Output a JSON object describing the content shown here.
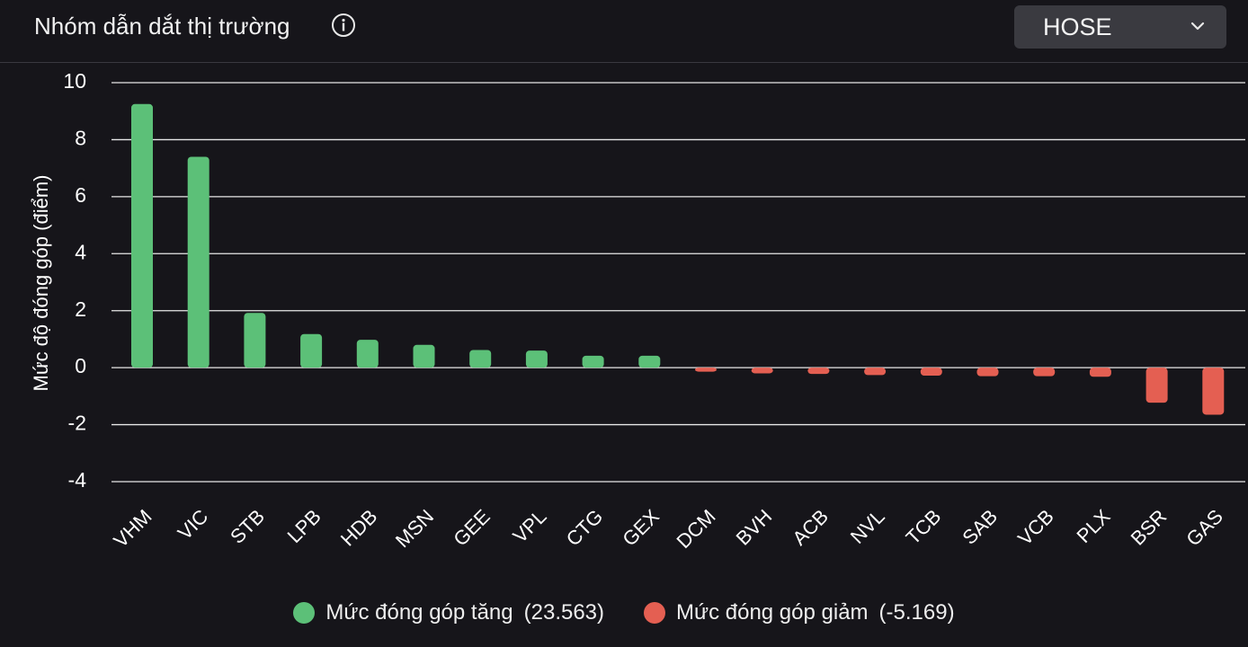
{
  "header": {
    "title": "Nhóm dẫn dắt thị trường",
    "info_icon": "info-circle-icon",
    "exchange_select": {
      "selected": "HOSE",
      "chevron_icon": "chevron-down-icon"
    }
  },
  "colors": {
    "background": "#16151a",
    "positive": "#5cc078",
    "negative": "#e45f52",
    "grid": "#e8e8e8",
    "select_bg": "#3a3a40"
  },
  "chart_data": {
    "type": "bar",
    "ylabel": "Mức độ đóng góp (điểm)",
    "ylim": [
      -4,
      10
    ],
    "yticks": [
      10,
      8,
      6,
      4,
      2,
      0,
      -2,
      -4
    ],
    "grid": true,
    "legend_placement": "bottom-center",
    "categories": [
      "VHM",
      "VIC",
      "STB",
      "LPB",
      "HDB",
      "MSN",
      "GEE",
      "VPL",
      "CTG",
      "GEX",
      "DCM",
      "BVH",
      "ACB",
      "NVL",
      "TCB",
      "SAB",
      "VCB",
      "PLX",
      "BSR",
      "GAS"
    ],
    "values": [
      9.25,
      7.4,
      1.92,
      1.18,
      0.98,
      0.8,
      0.62,
      0.6,
      0.42,
      0.42,
      -0.14,
      -0.2,
      -0.22,
      -0.26,
      -0.28,
      -0.3,
      -0.3,
      -0.32,
      -1.23,
      -1.65
    ],
    "series": [
      {
        "name": "Mức đóng góp tăng",
        "total": "(23.563)",
        "color": "#5cc078"
      },
      {
        "name": "Mức đóng góp giảm",
        "total": "(-5.169)",
        "color": "#e45f52"
      }
    ]
  }
}
